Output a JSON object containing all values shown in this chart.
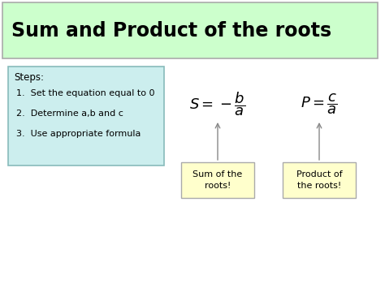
{
  "title": "Sum and Product of the roots",
  "title_bg": "#ccffcc",
  "title_border": "#aaaaaa",
  "main_bg": "#ffffff",
  "steps_title": "Steps:",
  "steps": [
    "Set the equation equal to 0",
    "Determine a,b and c",
    "Use appropriate formula"
  ],
  "steps_box_bg": "#cceeee",
  "steps_box_edge": "#88bbbb",
  "formula_S": "$S = -\\dfrac{b}{a}$",
  "formula_P": "$P = \\dfrac{c}{a}$",
  "label_S": "Sum of the\nroots!",
  "label_P": "Product of\nthe roots!",
  "label_box_bg": "#ffffcc",
  "label_box_edge": "#aaaaaa",
  "arrow_color": "#888888",
  "title_fontsize": 17,
  "steps_fontsize": 8.5,
  "formula_fontsize": 13,
  "label_fontsize": 8.0
}
